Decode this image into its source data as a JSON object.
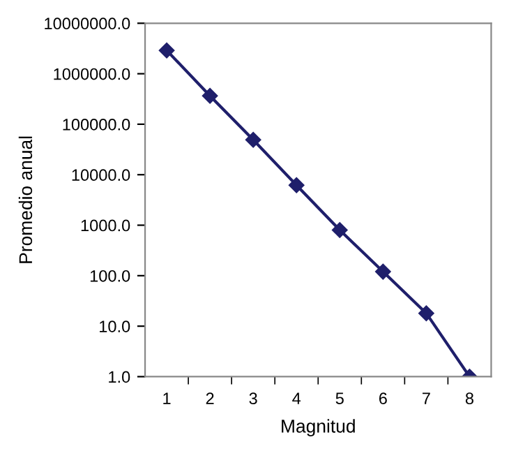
{
  "chart_data": {
    "type": "line",
    "xlabel": "Magnitud",
    "ylabel": "Promedio anual",
    "categories": [
      "1",
      "2",
      "3",
      "4",
      "5",
      "6",
      "7",
      "8"
    ],
    "series": [
      {
        "color": "#1f1f6b",
        "values": [
          2900000,
          365000,
          49000,
          6200,
          800,
          120,
          18,
          1
        ]
      }
    ],
    "log": "y",
    "ylim": [
      1,
      10000000
    ],
    "yticks": [
      {
        "value": 1,
        "label": "1.0"
      },
      {
        "value": 10,
        "label": "10.0"
      },
      {
        "value": 100,
        "label": "100.0"
      },
      {
        "value": 1000,
        "label": "1000.0"
      },
      {
        "value": 10000,
        "label": "10000.0"
      },
      {
        "value": 100000,
        "label": "100000.0"
      },
      {
        "value": 1000000,
        "label": "1000000.0"
      },
      {
        "value": 10000000,
        "label": "10000000.0"
      }
    ],
    "marker": "diamond",
    "line_style": "solid",
    "grid": false,
    "legend": false
  }
}
